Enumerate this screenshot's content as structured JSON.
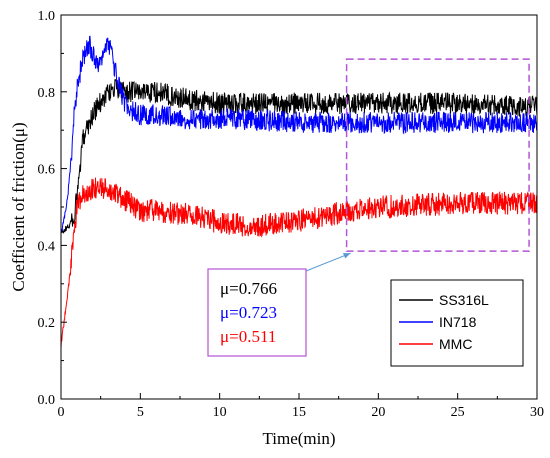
{
  "chart_data": {
    "type": "line",
    "xlabel": "Time(min)",
    "ylabel": "Coefficient of friction(μ)",
    "xlim": [
      0,
      30
    ],
    "ylim": [
      0,
      1.0
    ],
    "x_ticks": [
      "0",
      "5",
      "10",
      "15",
      "20",
      "25",
      "30"
    ],
    "y_ticks": [
      "0.0",
      "0.2",
      "0.4",
      "0.6",
      "0.8",
      "1.0"
    ],
    "x_tick_values": [
      0,
      5,
      10,
      15,
      20,
      25,
      30
    ],
    "y_tick_values": [
      0,
      0.2,
      0.4,
      0.6,
      0.8,
      1.0
    ],
    "grid": false,
    "legend_placement": "bottom-right",
    "highlight_region": {
      "x": [
        18,
        29.5
      ],
      "y": [
        0.385,
        0.885
      ]
    },
    "annotations": [
      {
        "text": "μ=0.766",
        "color": "#000000"
      },
      {
        "text": "μ=0.723",
        "color": "#0000ff"
      },
      {
        "text": "μ=0.511",
        "color": "#ff0000"
      }
    ],
    "series": [
      {
        "name": "SS316L",
        "color": "#000000",
        "noise": 0.028,
        "x": [
          0,
          0.2,
          0.5,
          0.8,
          1.0,
          1.2,
          1.4,
          1.6,
          1.8,
          2.0,
          2.3,
          2.6,
          3.0,
          3.5,
          4.0,
          5.0,
          6.0,
          7.0,
          8.0,
          10.0,
          12.0,
          15.0,
          18.0,
          20.0,
          25.0,
          30.0
        ],
        "y": [
          0.43,
          0.44,
          0.45,
          0.47,
          0.52,
          0.6,
          0.68,
          0.71,
          0.72,
          0.74,
          0.76,
          0.78,
          0.8,
          0.81,
          0.8,
          0.8,
          0.8,
          0.79,
          0.78,
          0.77,
          0.77,
          0.77,
          0.77,
          0.77,
          0.77,
          0.76
        ]
      },
      {
        "name": "IN718",
        "color": "#0000ff",
        "noise": 0.028,
        "x": [
          0,
          0.2,
          0.4,
          0.6,
          0.8,
          1.0,
          1.2,
          1.5,
          1.8,
          2.0,
          2.3,
          2.6,
          3.0,
          3.3,
          3.6,
          4.0,
          4.5,
          5.0,
          6.0,
          8.0,
          10.0,
          15.0,
          20.0,
          25.0,
          30.0
        ],
        "y": [
          0.43,
          0.47,
          0.52,
          0.6,
          0.73,
          0.8,
          0.85,
          0.9,
          0.92,
          0.9,
          0.86,
          0.89,
          0.93,
          0.88,
          0.82,
          0.77,
          0.75,
          0.74,
          0.74,
          0.73,
          0.73,
          0.72,
          0.72,
          0.72,
          0.72
        ]
      },
      {
        "name": "MMC",
        "color": "#ff0000",
        "noise": 0.03,
        "x": [
          0,
          0.2,
          0.5,
          0.8,
          1.0,
          1.5,
          2.0,
          3.0,
          4.0,
          5.0,
          6.0,
          8.0,
          10.0,
          12.0,
          14.0,
          16.0,
          18.0,
          20.0,
          25.0,
          30.0
        ],
        "y": [
          0.14,
          0.2,
          0.3,
          0.43,
          0.5,
          0.54,
          0.55,
          0.55,
          0.52,
          0.49,
          0.49,
          0.48,
          0.46,
          0.45,
          0.46,
          0.47,
          0.49,
          0.5,
          0.51,
          0.51
        ]
      }
    ]
  }
}
